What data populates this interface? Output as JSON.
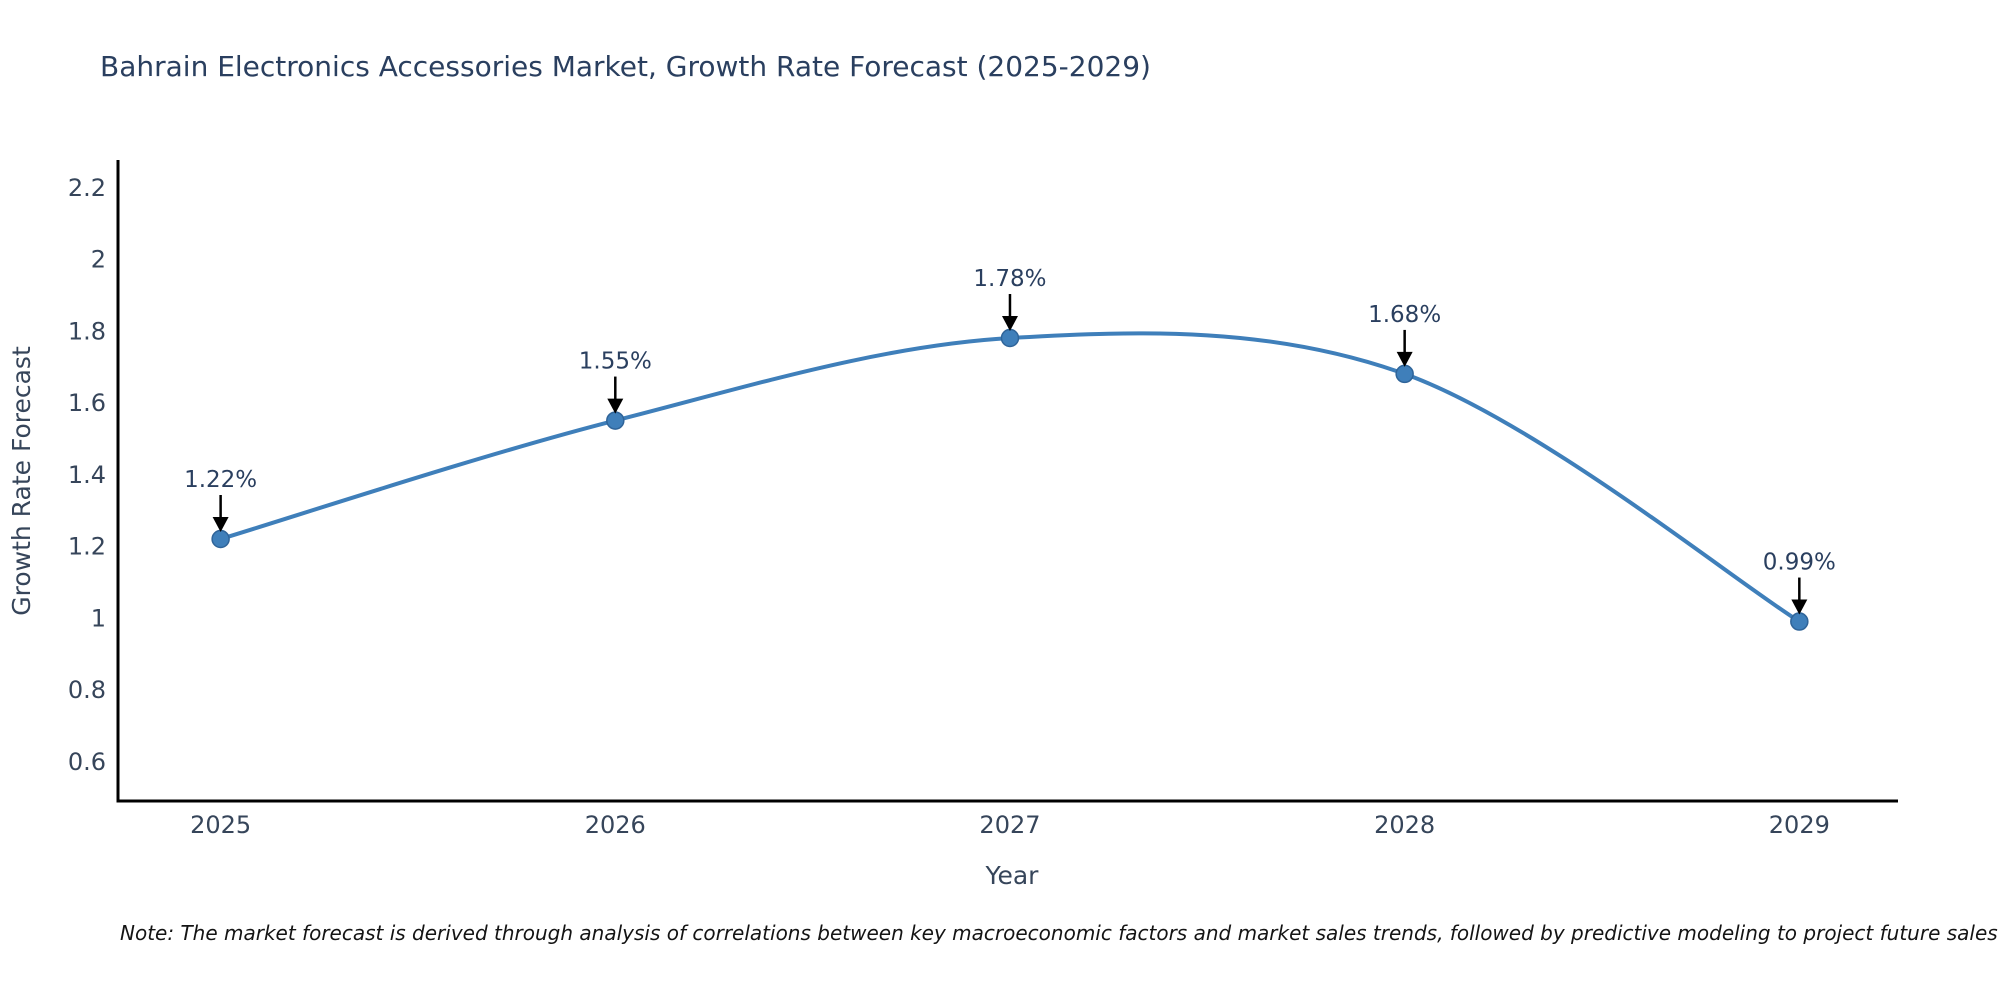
{
  "title": "Bahrain Electronics Accessories Market, Growth Rate Forecast (2025-2029)",
  "note": "Note: The market forecast is derived through analysis of correlations between key macroeconomic factors and market sales trends, followed by predictive modeling to project future sales",
  "chart_data": {
    "type": "line",
    "title": "Bahrain Electronics Accessories Market, Growth Rate Forecast (2025-2029)",
    "xlabel": "Year",
    "ylabel": "Growth Rate Forecast",
    "x": [
      2025,
      2026,
      2027,
      2028,
      2029
    ],
    "values": [
      1.22,
      1.55,
      1.78,
      1.68,
      0.99
    ],
    "point_labels": [
      "1.22%",
      "1.55%",
      "1.78%",
      "1.68%",
      "0.99%"
    ],
    "xticks": [
      "2025",
      "2026",
      "2027",
      "2028",
      "2029"
    ],
    "yticks": [
      0.6,
      0.8,
      1,
      1.2,
      1.4,
      1.6,
      1.8,
      2,
      2.2
    ],
    "xlim": [
      2024.74,
      2029.25
    ],
    "ylim": [
      0.49,
      2.276
    ],
    "grid": false,
    "legend": "none",
    "colors": {
      "line": "#3f7fba",
      "marker_fill": "#3f7fba",
      "marker_edge": "#2f6499",
      "axis": "#000000",
      "tick_text": "#36455a",
      "annotation_text": "#2a3f5f",
      "arrow": "#000000",
      "title_text": "#2a3f5f"
    }
  }
}
